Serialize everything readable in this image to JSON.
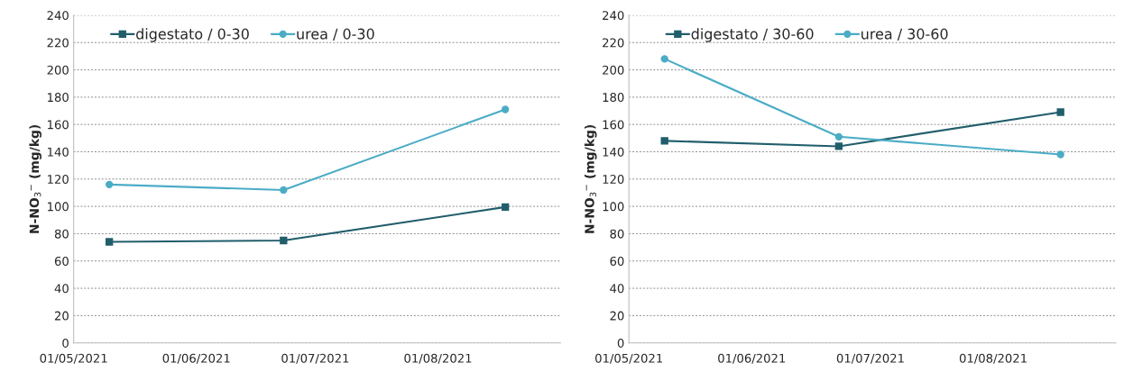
{
  "chart_data": [
    {
      "type": "line",
      "ylabel": "N-NO$_{3}$$^{−}$ (mg/kg)",
      "x": [
        "2021-05-10",
        "2021-06-23",
        "2021-08-18"
      ],
      "series": [
        {
          "name": "digestato / 0-30",
          "color": "#215e6c",
          "marker": "square",
          "values": [
            74,
            75,
            99.5
          ]
        },
        {
          "name": "urea / 0-30",
          "color": "#4bacc6",
          "marker": "circle",
          "values": [
            116,
            112,
            171
          ]
        }
      ],
      "xlim": [
        "2021-05-01",
        "2021-09-01"
      ],
      "xticks": [
        {
          "value": "2021-05-01",
          "label": "01/05/2021"
        },
        {
          "value": "2021-06-01",
          "label": "01/06/2021"
        },
        {
          "value": "2021-07-01",
          "label": "01/07/2021"
        },
        {
          "value": "2021-08-01",
          "label": "01/08/2021"
        }
      ],
      "ylim": [
        0,
        240
      ],
      "yticks": [
        0,
        20,
        40,
        60,
        80,
        100,
        120,
        140,
        160,
        180,
        200,
        220,
        240
      ],
      "grid": "y",
      "legend": "top left",
      "line_style": "solid"
    },
    {
      "type": "line",
      "ylabel": "N-NO$_{3}$$^{−}$ (mg/kg)",
      "x": [
        "2021-05-10",
        "2021-06-23",
        "2021-08-18"
      ],
      "series": [
        {
          "name": "digestato / 30-60",
          "color": "#215e6c",
          "marker": "square",
          "values": [
            148,
            144,
            169
          ]
        },
        {
          "name": "urea / 30-60",
          "color": "#4bacc6",
          "marker": "circle",
          "values": [
            208,
            151,
            138
          ]
        }
      ],
      "xlim": [
        "2021-05-01",
        "2021-09-01"
      ],
      "xticks": [
        {
          "value": "2021-05-01",
          "label": "01/05/2021"
        },
        {
          "value": "2021-06-01",
          "label": "01/06/2021"
        },
        {
          "value": "2021-07-01",
          "label": "01/07/2021"
        },
        {
          "value": "2021-08-01",
          "label": "01/08/2021"
        }
      ],
      "ylim": [
        0,
        240
      ],
      "yticks": [
        0,
        20,
        40,
        60,
        80,
        100,
        120,
        140,
        160,
        180,
        200,
        220,
        240
      ],
      "grid": "y",
      "legend": "top left",
      "line_style": "solid"
    }
  ]
}
